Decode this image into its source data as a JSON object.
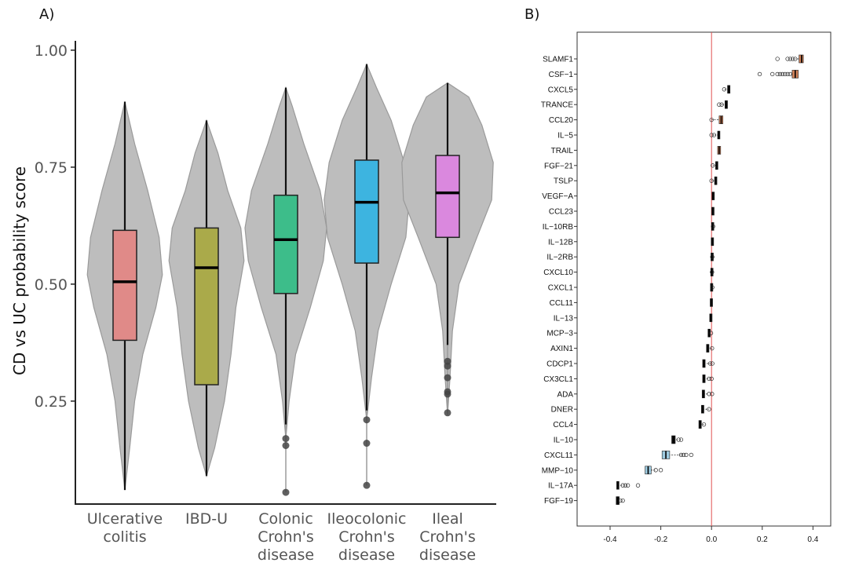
{
  "chart_data": [
    {
      "panel_label": "A)",
      "type": "violin+box",
      "ylabel": "CD vs UC probability score",
      "yticks": [
        "0.25",
        "0.50",
        "0.75",
        "1.00"
      ],
      "ylim": [
        0.03,
        1.02
      ],
      "grid": false,
      "groups": [
        {
          "label": [
            "Ulcerative",
            "colitis"
          ],
          "color": "#e08a88",
          "min": 0.06,
          "q1": 0.38,
          "median": 0.505,
          "q3": 0.615,
          "max": 0.89,
          "outliers": [],
          "density": [
            [
              0.06,
              0.0
            ],
            [
              0.15,
              0.06
            ],
            [
              0.25,
              0.12
            ],
            [
              0.35,
              0.22
            ],
            [
              0.45,
              0.38
            ],
            [
              0.52,
              0.46
            ],
            [
              0.6,
              0.42
            ],
            [
              0.7,
              0.28
            ],
            [
              0.8,
              0.12
            ],
            [
              0.89,
              0.0
            ]
          ]
        },
        {
          "label": [
            "IBD-U"
          ],
          "color": "#aaaa4a",
          "min": 0.09,
          "q1": 0.285,
          "median": 0.535,
          "q3": 0.62,
          "max": 0.85,
          "outliers": [],
          "density": [
            [
              0.09,
              0.0
            ],
            [
              0.15,
              0.1
            ],
            [
              0.25,
              0.22
            ],
            [
              0.35,
              0.3
            ],
            [
              0.45,
              0.36
            ],
            [
              0.55,
              0.46
            ],
            [
              0.62,
              0.42
            ],
            [
              0.7,
              0.26
            ],
            [
              0.78,
              0.14
            ],
            [
              0.85,
              0.0
            ]
          ]
        },
        {
          "label": [
            "Colonic",
            "Crohn's",
            "disease"
          ],
          "color": "#3dbd8a",
          "min": 0.2,
          "q1": 0.48,
          "median": 0.595,
          "q3": 0.69,
          "max": 0.92,
          "outliers": [
            0.17,
            0.155,
            0.055
          ],
          "density": [
            [
              0.17,
              0.0
            ],
            [
              0.25,
              0.04
            ],
            [
              0.35,
              0.12
            ],
            [
              0.45,
              0.3
            ],
            [
              0.55,
              0.46
            ],
            [
              0.62,
              0.5
            ],
            [
              0.7,
              0.42
            ],
            [
              0.8,
              0.22
            ],
            [
              0.88,
              0.08
            ],
            [
              0.92,
              0.0
            ]
          ]
        },
        {
          "label": [
            "Ileocolonic",
            "Crohn's",
            "disease"
          ],
          "color": "#3db4e0",
          "min": 0.23,
          "q1": 0.545,
          "median": 0.675,
          "q3": 0.765,
          "max": 0.97,
          "outliers": [
            0.21,
            0.16,
            0.07
          ],
          "density": [
            [
              0.21,
              0.0
            ],
            [
              0.3,
              0.06
            ],
            [
              0.4,
              0.14
            ],
            [
              0.5,
              0.3
            ],
            [
              0.6,
              0.48
            ],
            [
              0.68,
              0.52
            ],
            [
              0.76,
              0.46
            ],
            [
              0.85,
              0.3
            ],
            [
              0.92,
              0.12
            ],
            [
              0.97,
              0.0
            ]
          ]
        },
        {
          "label": [
            "Ileal",
            "Crohn's",
            "disease"
          ],
          "color": "#da88de",
          "min": 0.37,
          "q1": 0.6,
          "median": 0.695,
          "q3": 0.775,
          "max": 0.93,
          "outliers": [
            0.335,
            0.325,
            0.3,
            0.27,
            0.265,
            0.225
          ],
          "density": [
            [
              0.22,
              0.0
            ],
            [
              0.3,
              0.03
            ],
            [
              0.4,
              0.06
            ],
            [
              0.5,
              0.14
            ],
            [
              0.6,
              0.36
            ],
            [
              0.68,
              0.54
            ],
            [
              0.76,
              0.56
            ],
            [
              0.84,
              0.42
            ],
            [
              0.9,
              0.26
            ],
            [
              0.93,
              0.0
            ]
          ]
        }
      ]
    },
    {
      "panel_label": "B)",
      "type": "horizontal-boxplot",
      "xticks": [
        "-0.4",
        "-0.2",
        "0.0",
        "0.2",
        "0.4"
      ],
      "xlim": [
        -0.53,
        0.47
      ],
      "reference_line": {
        "x": 0.0,
        "color": "#e05050"
      },
      "grid": false,
      "features": [
        {
          "label": "SLAMF1",
          "median": 0.355,
          "q1": 0.345,
          "q3": 0.362,
          "color": "#d0825a",
          "outliers": [
            0.26,
            0.3,
            0.31,
            0.32,
            0.33
          ]
        },
        {
          "label": "CSF−1",
          "median": 0.33,
          "q1": 0.318,
          "q3": 0.342,
          "color": "#d0825a",
          "outliers": [
            0.19,
            0.24,
            0.26,
            0.27,
            0.28,
            0.29,
            0.3,
            0.31
          ]
        },
        {
          "label": "CXCL5",
          "median": 0.068,
          "q1": 0.063,
          "q3": 0.073,
          "color": "#111111",
          "outliers": [
            0.05
          ]
        },
        {
          "label": "TRANCE",
          "median": 0.058,
          "q1": 0.053,
          "q3": 0.063,
          "color": "#111111",
          "outliers": [
            0.03,
            0.04
          ]
        },
        {
          "label": "CCL20",
          "median": 0.038,
          "q1": 0.03,
          "q3": 0.045,
          "color": "#d0825a",
          "outliers": [
            0.0
          ]
        },
        {
          "label": "IL−5",
          "median": 0.028,
          "q1": 0.024,
          "q3": 0.033,
          "color": "#111111",
          "outliers": [
            0.0,
            0.01
          ]
        },
        {
          "label": "TRAIL",
          "median": 0.03,
          "q1": 0.024,
          "q3": 0.036,
          "color": "#d0825a",
          "outliers": []
        },
        {
          "label": "FGF−21",
          "median": 0.02,
          "q1": 0.016,
          "q3": 0.024,
          "color": "#111111",
          "outliers": [
            0.005
          ]
        },
        {
          "label": "TSLP",
          "median": 0.016,
          "q1": 0.012,
          "q3": 0.02,
          "color": "#111111",
          "outliers": [
            0.0
          ]
        },
        {
          "label": "VEGF−A",
          "median": 0.004,
          "q1": 0.002,
          "q3": 0.006,
          "color": "#111111",
          "outliers": []
        },
        {
          "label": "CCL23",
          "median": 0.003,
          "q1": 0.001,
          "q3": 0.005,
          "color": "#111111",
          "outliers": []
        },
        {
          "label": "IL−10RB",
          "median": 0.002,
          "q1": 0.0,
          "q3": 0.004,
          "color": "#111111",
          "outliers": [
            0.006
          ]
        },
        {
          "label": "IL−12B",
          "median": 0.001,
          "q1": -0.001,
          "q3": 0.003,
          "color": "#111111",
          "outliers": []
        },
        {
          "label": "IL−2RB",
          "median": 0.0,
          "q1": -0.002,
          "q3": 0.002,
          "color": "#111111",
          "outliers": [
            0.003
          ]
        },
        {
          "label": "CXCL10",
          "median": -0.001,
          "q1": -0.003,
          "q3": 0.001,
          "color": "#111111",
          "outliers": [
            0.002
          ]
        },
        {
          "label": "CXCL1",
          "median": -0.002,
          "q1": -0.004,
          "q3": 0.0,
          "color": "#111111",
          "outliers": [
            0.003
          ]
        },
        {
          "label": "CCL11",
          "median": -0.003,
          "q1": -0.005,
          "q3": -0.001,
          "color": "#111111",
          "outliers": []
        },
        {
          "label": "IL−13",
          "median": -0.005,
          "q1": -0.007,
          "q3": -0.003,
          "color": "#111111",
          "outliers": []
        },
        {
          "label": "MCP−3",
          "median": -0.01,
          "q1": -0.014,
          "q3": -0.006,
          "color": "#111111",
          "outliers": [
            -0.002
          ]
        },
        {
          "label": "AXIN1",
          "median": -0.015,
          "q1": -0.02,
          "q3": -0.01,
          "color": "#111111",
          "outliers": [
            0.002
          ]
        },
        {
          "label": "CDCP1",
          "median": -0.03,
          "q1": -0.035,
          "q3": -0.025,
          "color": "#111111",
          "outliers": [
            -0.005,
            0.003
          ]
        },
        {
          "label": "CX3CL1",
          "median": -0.03,
          "q1": -0.035,
          "q3": -0.025,
          "color": "#111111",
          "outliers": [
            -0.01,
            0.0
          ]
        },
        {
          "label": "ADA",
          "median": -0.032,
          "q1": -0.037,
          "q3": -0.027,
          "color": "#111111",
          "outliers": [
            -0.01,
            0.002
          ]
        },
        {
          "label": "DNER",
          "median": -0.035,
          "q1": -0.04,
          "q3": -0.03,
          "color": "#111111",
          "outliers": [
            -0.01
          ]
        },
        {
          "label": "CCL4",
          "median": -0.045,
          "q1": -0.05,
          "q3": -0.04,
          "color": "#111111",
          "outliers": [
            -0.03
          ]
        },
        {
          "label": "IL−10",
          "median": -0.15,
          "q1": -0.157,
          "q3": -0.143,
          "color": "#111111",
          "outliers": [
            -0.13,
            -0.12
          ]
        },
        {
          "label": "CXCL11",
          "median": -0.18,
          "q1": -0.195,
          "q3": -0.165,
          "color": "#9ecbe0",
          "outliers": [
            -0.12,
            -0.11,
            -0.1,
            -0.08
          ]
        },
        {
          "label": "MMP−10",
          "median": -0.25,
          "q1": -0.262,
          "q3": -0.238,
          "color": "#9ecbe0",
          "outliers": [
            -0.22,
            -0.2
          ]
        },
        {
          "label": "IL−17A",
          "median": -0.37,
          "q1": -0.374,
          "q3": -0.366,
          "color": "#111111",
          "outliers": [
            -0.35,
            -0.34,
            -0.33,
            -0.29
          ]
        },
        {
          "label": "FGF−19",
          "median": -0.37,
          "q1": -0.376,
          "q3": -0.364,
          "color": "#111111",
          "outliers": [
            -0.36,
            -0.35
          ]
        }
      ]
    }
  ]
}
